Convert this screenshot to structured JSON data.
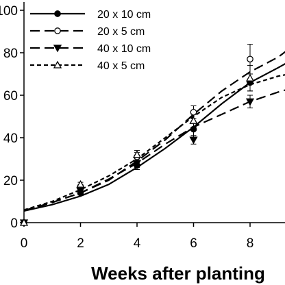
{
  "chart_data": {
    "type": "line",
    "title": "",
    "xlabel": "Weeks after planting",
    "ylabel": "",
    "xlim": [
      0,
      9.4
    ],
    "ylim": [
      0,
      100
    ],
    "x_ticks": [
      "0",
      "2",
      "4",
      "6",
      "8"
    ],
    "y_ticks": [
      "0",
      "20",
      "40",
      "60",
      "80",
      "100"
    ],
    "x_tick_values": [
      0,
      2,
      4,
      6,
      8
    ],
    "y_tick_values": [
      0,
      20,
      40,
      60,
      80,
      100
    ],
    "legend_position": "top-left",
    "grid": false,
    "series": [
      {
        "name": "20 x 10 cm",
        "marker": "filled-circle",
        "dash": "solid",
        "points": [
          [
            0,
            0
          ],
          [
            2,
            14
          ],
          [
            4,
            27
          ],
          [
            6,
            44
          ],
          [
            8,
            66
          ]
        ],
        "errors": [
          0,
          1,
          2,
          3,
          4
        ],
        "fit": [
          [
            0,
            5.5
          ],
          [
            1,
            8.5
          ],
          [
            2,
            12.5
          ],
          [
            3,
            18
          ],
          [
            4,
            26
          ],
          [
            5,
            35
          ],
          [
            6,
            45
          ],
          [
            7,
            56
          ],
          [
            8,
            66
          ],
          [
            9,
            73
          ],
          [
            9.4,
            76
          ]
        ]
      },
      {
        "name": "20 x 5 cm",
        "marker": "open-circle",
        "dash": "long-dash",
        "points": [
          [
            0,
            0
          ],
          [
            2,
            17
          ],
          [
            4,
            31
          ],
          [
            6,
            52
          ],
          [
            8,
            77
          ]
        ],
        "errors": [
          0,
          1,
          2,
          3,
          7
        ],
        "fit": [
          [
            0,
            5.7
          ],
          [
            1,
            9.5
          ],
          [
            2,
            14
          ],
          [
            3,
            20
          ],
          [
            4,
            29
          ],
          [
            5,
            39
          ],
          [
            6,
            51
          ],
          [
            7,
            62
          ],
          [
            8,
            71
          ],
          [
            9,
            78
          ],
          [
            9.4,
            82
          ]
        ]
      },
      {
        "name": "40 x 10 cm",
        "marker": "filled-triangle-down",
        "dash": "long-dash",
        "points": [
          [
            0,
            0
          ],
          [
            2,
            15
          ],
          [
            4,
            28
          ],
          [
            6,
            39
          ],
          [
            8,
            57
          ]
        ],
        "errors": [
          0,
          1,
          2,
          2,
          3
        ],
        "fit": [
          [
            0,
            5.6
          ],
          [
            1,
            9.5
          ],
          [
            2,
            14
          ],
          [
            3,
            20.5
          ],
          [
            4,
            28
          ],
          [
            5,
            37
          ],
          [
            6,
            45
          ],
          [
            7,
            51
          ],
          [
            8,
            57
          ],
          [
            9,
            61.5
          ],
          [
            9.4,
            63
          ]
        ]
      },
      {
        "name": "40 x 5 cm",
        "marker": "open-triangle-up",
        "dash": "short-dash",
        "points": [
          [
            0,
            0
          ],
          [
            2,
            18
          ],
          [
            4,
            32
          ],
          [
            6,
            48
          ],
          [
            8,
            68
          ]
        ],
        "errors": [
          0,
          1,
          2,
          3,
          6
        ],
        "fit": [
          [
            0,
            6
          ],
          [
            1,
            10
          ],
          [
            2,
            15.5
          ],
          [
            3,
            22
          ],
          [
            4,
            30
          ],
          [
            5,
            40
          ],
          [
            6,
            50
          ],
          [
            7,
            59
          ],
          [
            8,
            65
          ],
          [
            9,
            69
          ],
          [
            9.4,
            70
          ]
        ]
      }
    ]
  }
}
